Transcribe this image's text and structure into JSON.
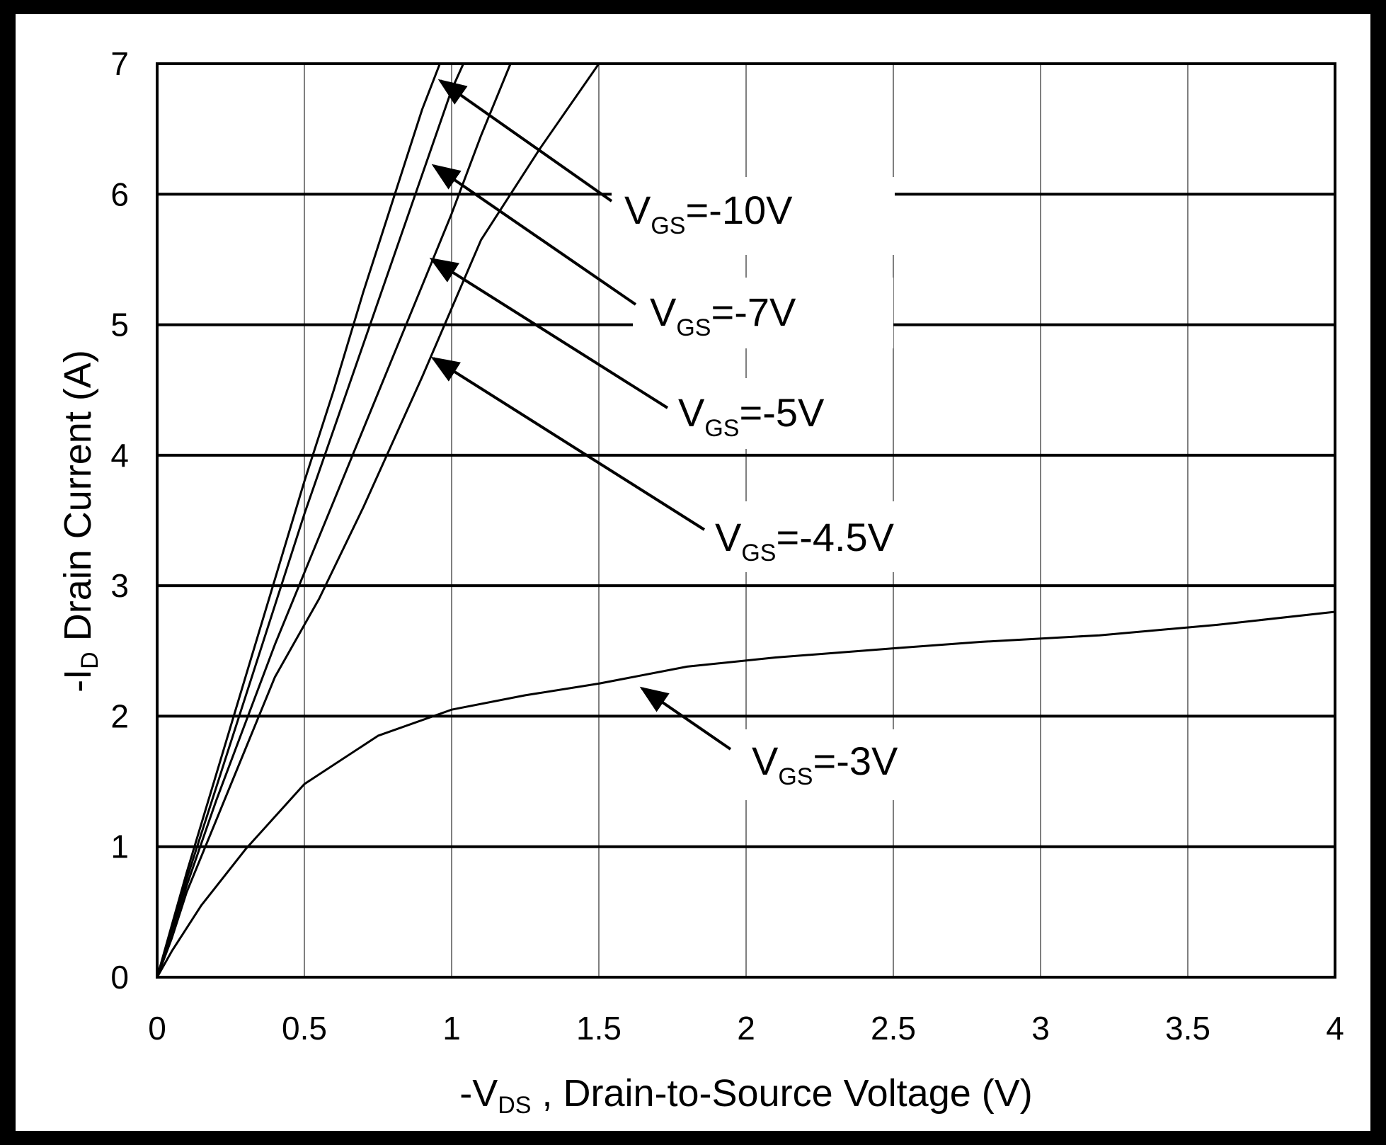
{
  "chart_data": {
    "type": "line",
    "xlim": [
      0,
      4
    ],
    "ylim": [
      0,
      7
    ],
    "grid": true,
    "x_ticks": [
      "0",
      "0.5",
      "1",
      "1.5",
      "2",
      "2.5",
      "3",
      "3.5",
      "4"
    ],
    "y_ticks": [
      "0",
      "1",
      "2",
      "3",
      "4",
      "5",
      "6",
      "7"
    ],
    "xlabel": {
      "prefix": "-V",
      "sub": "DS",
      "suffix": " , Drain-to-Source Voltage (V)"
    },
    "ylabel": {
      "prefix": "-I",
      "sub": "D",
      "suffix": " Drain Current (A)"
    },
    "series": [
      {
        "name": "VGS=-10V",
        "label": {
          "prefix": "V",
          "sub": "GS",
          "suffix": "=-10V"
        },
        "x": [
          0,
          0.05,
          0.1,
          0.2,
          0.3,
          0.4,
          0.5,
          0.6,
          0.7,
          0.8,
          0.9,
          0.96
        ],
        "y": [
          0,
          0.4,
          0.8,
          1.55,
          2.3,
          3.05,
          3.8,
          4.5,
          5.25,
          5.95,
          6.65,
          7
        ]
      },
      {
        "name": "VGS=-7V",
        "label": {
          "prefix": "V",
          "sub": "GS",
          "suffix": "=-7V"
        },
        "x": [
          0,
          0.05,
          0.1,
          0.2,
          0.3,
          0.4,
          0.5,
          0.6,
          0.7,
          0.8,
          0.9,
          1.0,
          1.04
        ],
        "y": [
          0,
          0.38,
          0.75,
          1.45,
          2.15,
          2.85,
          3.55,
          4.2,
          4.85,
          5.5,
          6.15,
          6.8,
          7
        ]
      },
      {
        "name": "VGS=-5V",
        "label": {
          "prefix": "V",
          "sub": "GS",
          "suffix": "=-5V"
        },
        "x": [
          0,
          0.05,
          0.1,
          0.2,
          0.3,
          0.4,
          0.5,
          0.6,
          0.7,
          0.8,
          0.9,
          1.0,
          1.1,
          1.2
        ],
        "y": [
          0,
          0.35,
          0.7,
          1.35,
          1.95,
          2.55,
          3.1,
          3.65,
          4.2,
          4.75,
          5.3,
          5.85,
          6.45,
          7
        ]
      },
      {
        "name": "VGS=-4.5V",
        "label": {
          "prefix": "V",
          "sub": "GS",
          "suffix": "=-4.5V"
        },
        "x": [
          0,
          0.05,
          0.1,
          0.2,
          0.3,
          0.4,
          0.5,
          0.55,
          0.7,
          0.9,
          1.1,
          1.3,
          1.5
        ],
        "y": [
          0,
          0.3,
          0.65,
          1.2,
          1.75,
          2.3,
          2.7,
          2.9,
          3.6,
          4.6,
          5.65,
          6.35,
          7
        ]
      },
      {
        "name": "VGS=-3V",
        "label": {
          "prefix": "V",
          "sub": "GS",
          "suffix": "=-3V"
        },
        "x": [
          0,
          0.05,
          0.15,
          0.3,
          0.5,
          0.75,
          1.0,
          1.25,
          1.5,
          1.8,
          2.1,
          2.5,
          2.8,
          3.2,
          3.6,
          4.0
        ],
        "y": [
          0,
          0.2,
          0.55,
          0.98,
          1.48,
          1.85,
          2.05,
          2.16,
          2.25,
          2.38,
          2.45,
          2.52,
          2.57,
          2.62,
          2.7,
          2.8
        ]
      }
    ]
  }
}
